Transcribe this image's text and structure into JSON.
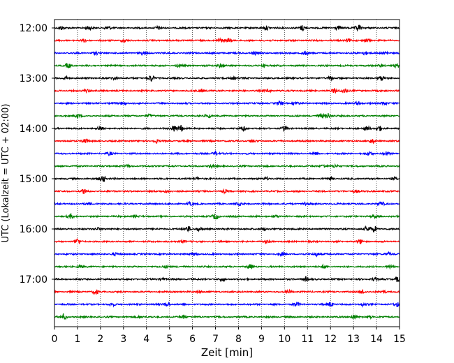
{
  "chart_data": {
    "type": "line",
    "title": "",
    "xlabel": "Zeit  [min]",
    "ylabel": "UTC (Lokalzeit = UTC + 02:00)",
    "xlim": [
      0,
      15
    ],
    "x_ticks": [
      "0",
      "1",
      "2",
      "3",
      "4",
      "5",
      "6",
      "7",
      "8",
      "9",
      "10",
      "11",
      "12",
      "13",
      "14",
      "15"
    ],
    "y_ticks": [
      "12:00",
      "13:00",
      "14:00",
      "15:00",
      "16:00",
      "17:00"
    ],
    "grid": "vertical dotted",
    "colors": [
      "#000000",
      "#ff0000",
      "#0000ff",
      "#008000"
    ],
    "series": [
      {
        "start": "12:00",
        "color": "#000000",
        "events": [
          [
            0.3,
            0.5
          ],
          [
            1.5,
            0.5
          ],
          [
            2.3,
            0.6
          ],
          [
            4.5,
            0.4
          ],
          [
            9.2,
            0.6
          ],
          [
            10.8,
            0.9
          ],
          [
            12.3,
            0.5
          ],
          [
            13.2,
            1.0
          ]
        ]
      },
      {
        "start": "12:15",
        "color": "#ff0000",
        "events": [
          [
            1.3,
            0.4
          ],
          [
            3.0,
            0.4
          ],
          [
            7.2,
            0.5
          ],
          [
            7.6,
            0.6
          ],
          [
            12.8,
            0.5
          ],
          [
            13.6,
            0.4
          ]
        ]
      },
      {
        "start": "12:30",
        "color": "#0000ff",
        "events": [
          [
            1.8,
            0.4
          ],
          [
            3.8,
            0.4
          ],
          [
            8.7,
            0.4
          ],
          [
            10.9,
            0.5
          ],
          [
            13.5,
            0.5
          ],
          [
            14.4,
            0.4
          ]
        ]
      },
      {
        "start": "12:45",
        "color": "#008000",
        "events": [
          [
            0.6,
            0.6
          ],
          [
            5.4,
            0.4
          ],
          [
            7.2,
            0.5
          ],
          [
            9.1,
            0.4
          ],
          [
            14.2,
            0.4
          ],
          [
            14.9,
            0.5
          ]
        ]
      },
      {
        "start": "13:00",
        "color": "#000000",
        "events": [
          [
            0.5,
            0.4
          ],
          [
            2.6,
            0.4
          ],
          [
            4.2,
            0.9
          ],
          [
            7.8,
            0.4
          ],
          [
            12.0,
            0.6
          ],
          [
            14.2,
            0.7
          ]
        ]
      },
      {
        "start": "13:15",
        "color": "#ff0000",
        "events": [
          [
            1.4,
            0.4
          ],
          [
            6.4,
            0.4
          ],
          [
            9.3,
            0.4
          ],
          [
            12.2,
            0.7
          ],
          [
            12.6,
            0.8
          ]
        ]
      },
      {
        "start": "13:30",
        "color": "#0000ff",
        "events": [
          [
            3.0,
            0.4
          ],
          [
            9.8,
            0.5
          ],
          [
            10.5,
            0.4
          ],
          [
            13.2,
            0.5
          ],
          [
            14.3,
            0.5
          ]
        ]
      },
      {
        "start": "13:45",
        "color": "#008000",
        "events": [
          [
            1.0,
            0.6
          ],
          [
            4.1,
            0.4
          ],
          [
            6.7,
            0.5
          ],
          [
            11.6,
            0.6
          ],
          [
            11.9,
            0.8
          ]
        ]
      },
      {
        "start": "14:00",
        "color": "#000000",
        "events": [
          [
            2.0,
            0.6
          ],
          [
            5.2,
            0.9
          ],
          [
            5.5,
            1.0
          ],
          [
            8.2,
            0.6
          ],
          [
            10.0,
            0.6
          ],
          [
            13.6,
            0.7
          ],
          [
            14.1,
            0.8
          ]
        ]
      },
      {
        "start": "14:15",
        "color": "#ff0000",
        "events": [
          [
            1.3,
            0.7
          ],
          [
            4.4,
            0.5
          ],
          [
            8.6,
            0.4
          ],
          [
            13.8,
            0.6
          ]
        ]
      },
      {
        "start": "14:30",
        "color": "#0000ff",
        "events": [
          [
            2.4,
            0.4
          ],
          [
            7.0,
            0.6
          ],
          [
            11.3,
            0.4
          ],
          [
            13.7,
            0.6
          ],
          [
            14.4,
            0.5
          ]
        ]
      },
      {
        "start": "14:45",
        "color": "#008000",
        "events": [
          [
            3.2,
            0.4
          ],
          [
            6.8,
            0.4
          ],
          [
            11.7,
            0.5
          ],
          [
            12.2,
            0.4
          ]
        ]
      },
      {
        "start": "15:00",
        "color": "#000000",
        "events": [
          [
            2.1,
            1.0
          ],
          [
            6.2,
            0.4
          ],
          [
            9.2,
            0.4
          ],
          [
            12.0,
            0.4
          ],
          [
            14.8,
            0.4
          ]
        ]
      },
      {
        "start": "15:15",
        "color": "#ff0000",
        "events": [
          [
            1.3,
            0.7
          ],
          [
            4.9,
            0.4
          ],
          [
            7.4,
            0.4
          ],
          [
            13.1,
            0.4
          ]
        ]
      },
      {
        "start": "15:30",
        "color": "#0000ff",
        "events": [
          [
            1.5,
            0.4
          ],
          [
            5.9,
            0.5
          ],
          [
            8.0,
            0.4
          ],
          [
            10.9,
            0.5
          ],
          [
            14.2,
            0.6
          ]
        ]
      },
      {
        "start": "15:45",
        "color": "#008000",
        "events": [
          [
            0.7,
            0.6
          ],
          [
            3.5,
            0.4
          ],
          [
            7.0,
            0.9
          ],
          [
            9.6,
            0.4
          ],
          [
            13.9,
            0.4
          ]
        ]
      },
      {
        "start": "16:00",
        "color": "#000000",
        "events": [
          [
            1.9,
            0.4
          ],
          [
            5.8,
            0.8
          ],
          [
            6.3,
            0.5
          ],
          [
            9.1,
            0.4
          ],
          [
            13.6,
            0.7
          ],
          [
            13.9,
            0.9
          ]
        ]
      },
      {
        "start": "16:15",
        "color": "#ff0000",
        "events": [
          [
            1.0,
            0.8
          ],
          [
            5.6,
            0.4
          ],
          [
            9.2,
            0.4
          ],
          [
            13.3,
            0.6
          ]
        ]
      },
      {
        "start": "16:30",
        "color": "#0000ff",
        "events": [
          [
            2.6,
            0.4
          ],
          [
            6.1,
            0.4
          ],
          [
            9.9,
            0.4
          ],
          [
            11.4,
            0.6
          ],
          [
            14.5,
            0.5
          ]
        ]
      },
      {
        "start": "16:45",
        "color": "#008000",
        "events": [
          [
            1.1,
            0.4
          ],
          [
            4.9,
            0.4
          ],
          [
            8.5,
            0.7
          ],
          [
            11.7,
            0.4
          ],
          [
            14.6,
            0.4
          ]
        ]
      },
      {
        "start": "17:00",
        "color": "#000000",
        "events": [
          [
            4.7,
            0.4
          ],
          [
            7.3,
            0.4
          ],
          [
            10.9,
            0.7
          ],
          [
            13.9,
            0.4
          ],
          [
            14.95,
            1.0
          ]
        ]
      },
      {
        "start": "17:15",
        "color": "#ff0000",
        "events": [
          [
            1.8,
            0.6
          ],
          [
            6.3,
            0.4
          ],
          [
            10.2,
            0.4
          ],
          [
            13.4,
            0.6
          ],
          [
            14.3,
            0.4
          ]
        ]
      },
      {
        "start": "17:30",
        "color": "#0000ff",
        "events": [
          [
            2.5,
            0.4
          ],
          [
            4.9,
            0.6
          ],
          [
            10.5,
            0.6
          ],
          [
            12.0,
            0.7
          ],
          [
            13.4,
            0.5
          ],
          [
            14.9,
            0.6
          ]
        ]
      },
      {
        "start": "17:45",
        "color": "#008000",
        "events": [
          [
            0.4,
            0.9
          ],
          [
            3.7,
            0.4
          ],
          [
            5.6,
            0.5
          ],
          [
            13.0,
            0.6
          ],
          [
            13.7,
            0.4
          ]
        ]
      }
    ]
  }
}
